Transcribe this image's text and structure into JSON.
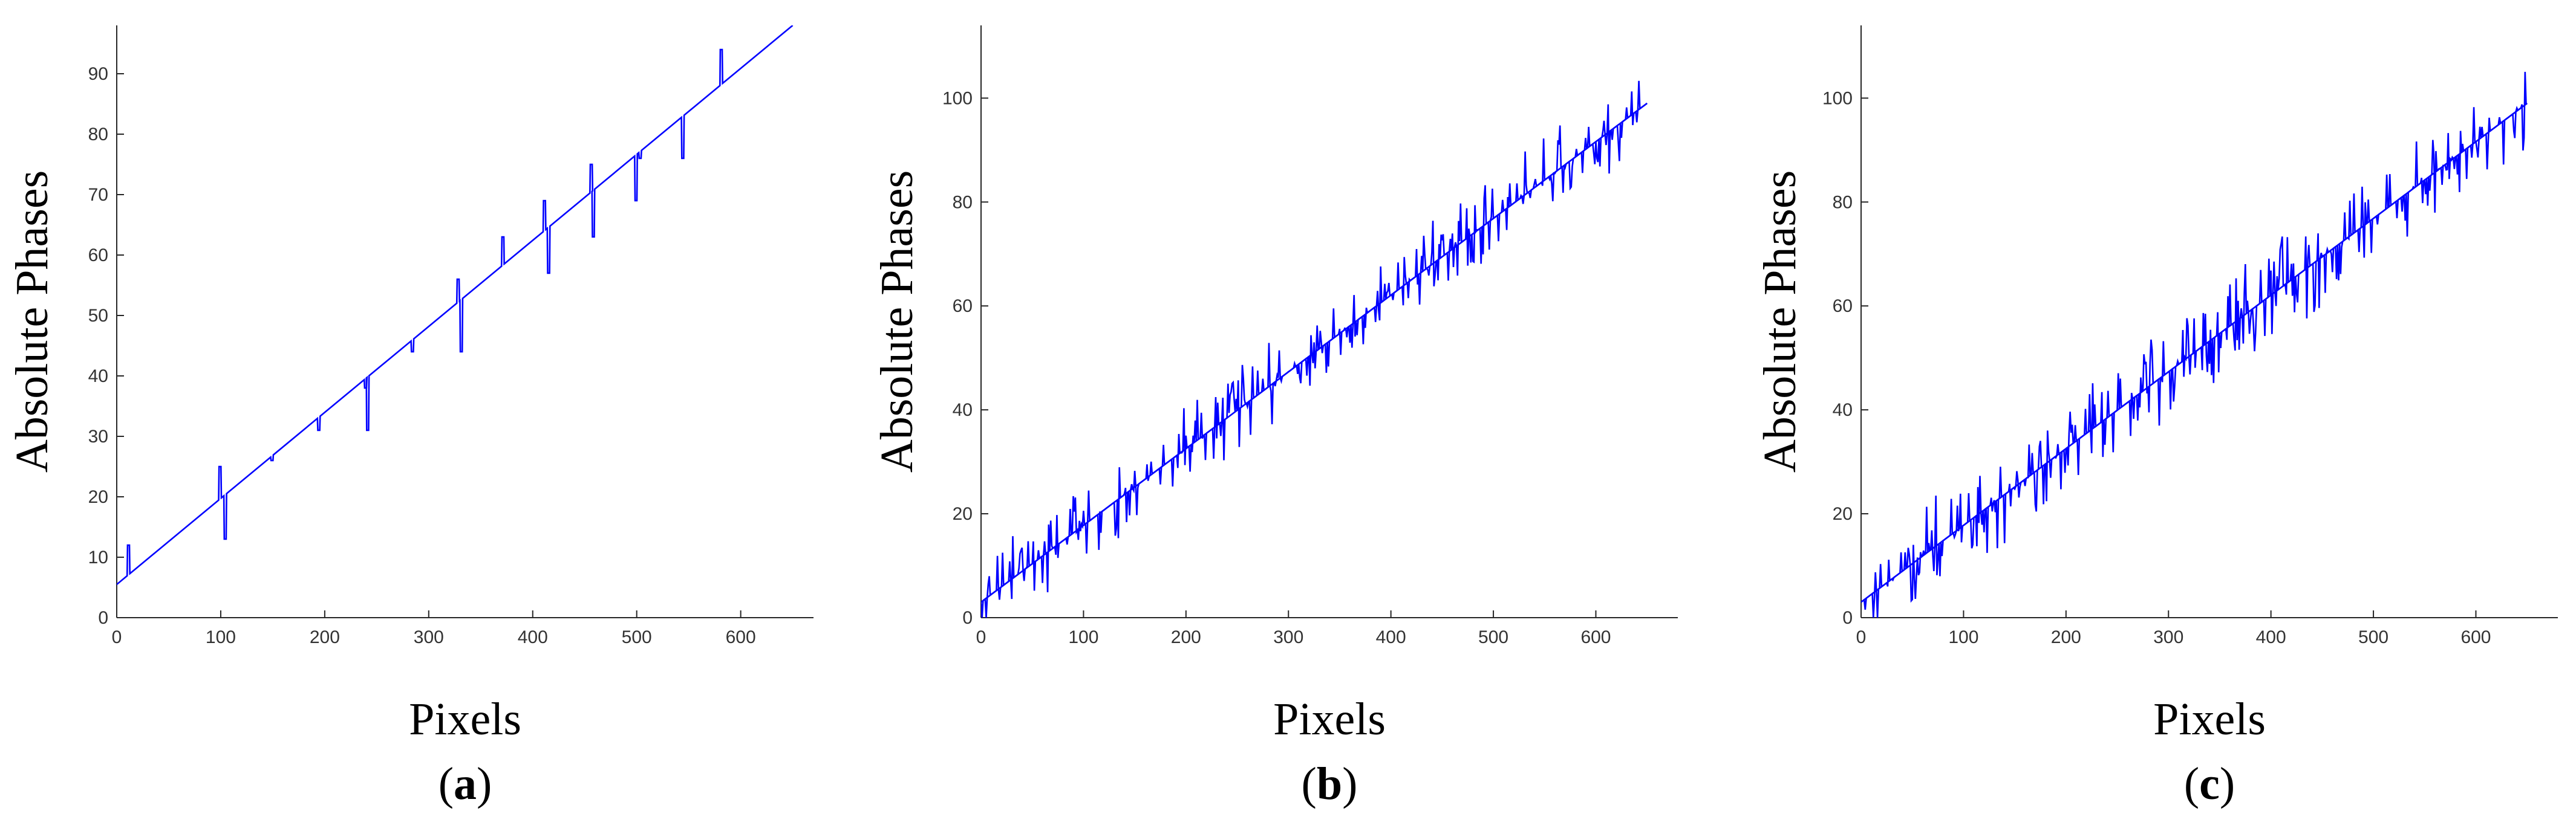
{
  "chart_data": [
    {
      "type": "line",
      "panel": "a",
      "xlabel": "Pixels",
      "ylabel": "Absolute Phases",
      "xlim": [
        0,
        670
      ],
      "ylim": [
        0,
        98
      ],
      "xticks": [
        0,
        100,
        200,
        300,
        400,
        500,
        600
      ],
      "yticks": [
        0,
        10,
        20,
        30,
        40,
        50,
        60,
        70,
        80,
        90
      ],
      "grid": false,
      "color": "#0000ff",
      "trend": {
        "x": [
          0,
          650
        ],
        "y": [
          5.5,
          98
        ]
      },
      "spikes": [
        {
          "x": 10,
          "y": 12
        },
        {
          "x": 98,
          "y": 25
        },
        {
          "x": 103,
          "y": 13
        },
        {
          "x": 148,
          "y": 26
        },
        {
          "x": 193,
          "y": 31
        },
        {
          "x": 238,
          "y": 38
        },
        {
          "x": 240,
          "y": 31
        },
        {
          "x": 283,
          "y": 44
        },
        {
          "x": 327,
          "y": 56
        },
        {
          "x": 330,
          "y": 44
        },
        {
          "x": 370,
          "y": 63
        },
        {
          "x": 410,
          "y": 69
        },
        {
          "x": 414,
          "y": 57
        },
        {
          "x": 455,
          "y": 75
        },
        {
          "x": 457,
          "y": 63
        },
        {
          "x": 498,
          "y": 69
        },
        {
          "x": 502,
          "y": 76
        },
        {
          "x": 543,
          "y": 76
        },
        {
          "x": 580,
          "y": 94
        }
      ]
    },
    {
      "type": "line",
      "panel": "b",
      "xlabel": "Pixels",
      "ylabel": "Absolute Phases",
      "xlim": [
        0,
        680
      ],
      "ylim": [
        0,
        114
      ],
      "xticks": [
        0,
        100,
        200,
        300,
        400,
        500,
        600
      ],
      "yticks": [
        0,
        20,
        40,
        60,
        80,
        100
      ],
      "grid": false,
      "color": "#0000ff",
      "trend": {
        "x": [
          0,
          650
        ],
        "y": [
          3,
          99
        ]
      },
      "noise_amplitude": 6
    },
    {
      "type": "line",
      "panel": "c",
      "xlabel": "Pixels",
      "ylabel": "Absolute Phases",
      "xlim": [
        0,
        680
      ],
      "ylim": [
        0,
        114
      ],
      "xticks": [
        0,
        100,
        200,
        300,
        400,
        500,
        600
      ],
      "yticks": [
        0,
        20,
        40,
        60,
        80,
        100
      ],
      "grid": false,
      "color": "#0000ff",
      "trend": {
        "x": [
          0,
          650
        ],
        "y": [
          3,
          99
        ]
      },
      "noise_amplitude": 7
    }
  ],
  "captions": [
    {
      "open": "(",
      "letter": "a",
      "close": ")"
    },
    {
      "open": "(",
      "letter": "b",
      "close": ")"
    },
    {
      "open": "(",
      "letter": "c",
      "close": ")"
    }
  ]
}
